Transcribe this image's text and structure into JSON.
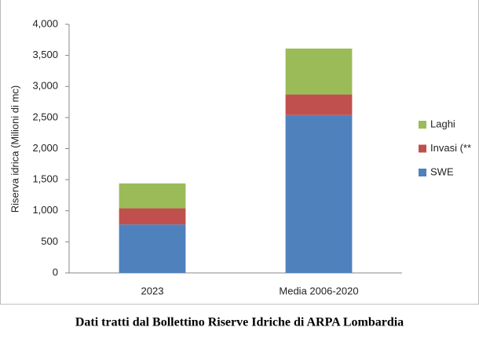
{
  "chart_data": {
    "type": "stacked-bar",
    "y_label": "Riserva idrica  (Milioni di mc)",
    "caption": "Dati tratti dal Bollettino Riserve Idriche di ARPA Lombardia",
    "categories": [
      "2023",
      "Media 2006-2020"
    ],
    "series": [
      {
        "name": "SWE",
        "color": "#4f81bd",
        "values": [
          780,
          2540
        ]
      },
      {
        "name": "Invasi (**",
        "color": "#c0504d",
        "values": [
          260,
          330
        ]
      },
      {
        "name": "Laghi",
        "color": "#9bbb59",
        "values": [
          400,
          740
        ]
      }
    ],
    "ylim": [
      0,
      4000
    ],
    "yticks": [
      0,
      500,
      {
        "value": 1000,
        "label": "1,000"
      },
      {
        "value": 1500,
        "label": "1,500"
      },
      {
        "value": 2000,
        "label": "2,000"
      },
      {
        "value": 2500,
        "label": "2,500"
      },
      {
        "value": 3000,
        "label": "3,000"
      },
      {
        "value": 3500,
        "label": "3,500"
      },
      {
        "value": 4000,
        "label": "4,000"
      }
    ],
    "legend": "right"
  }
}
